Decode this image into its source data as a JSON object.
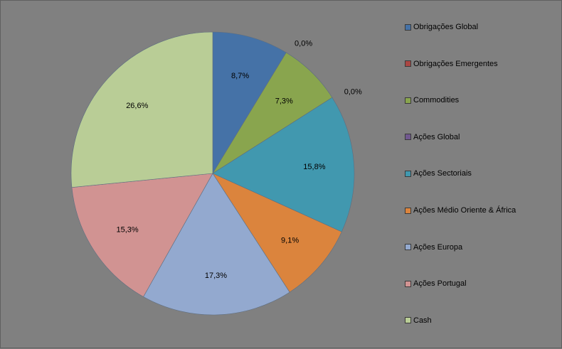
{
  "chart_data": {
    "type": "pie",
    "start_angle_deg": 0,
    "direction": "clockwise",
    "legend_position": "right",
    "slices": [
      {
        "name": "Obrigações Global",
        "value": 8.7,
        "label": "8,7%",
        "color": "#4572A7"
      },
      {
        "name": "Obrigações Emergentes",
        "value": 0.0,
        "label": "0,0%",
        "color": "#AA4643"
      },
      {
        "name": "Commodities",
        "value": 7.3,
        "label": "7,3%",
        "color": "#89A54E"
      },
      {
        "name": "Ações Global",
        "value": 0.0,
        "label": "0,0%",
        "color": "#71588F"
      },
      {
        "name": "Ações Sectoriais",
        "value": 15.8,
        "label": "15,8%",
        "color": "#4198AF"
      },
      {
        "name": "Ações Médio Oriente & África",
        "value": 9.1,
        "label": "9,1%",
        "color": "#DB843D"
      },
      {
        "name": "Ações Europa",
        "value": 17.3,
        "label": "17,3%",
        "color": "#93A9CF"
      },
      {
        "name": "Ações Portugal",
        "value": 15.3,
        "label": "15,3%",
        "color": "#D19392"
      },
      {
        "name": "Cash",
        "value": 26.6,
        "label": "26,6%",
        "color": "#B9CD96"
      }
    ]
  }
}
